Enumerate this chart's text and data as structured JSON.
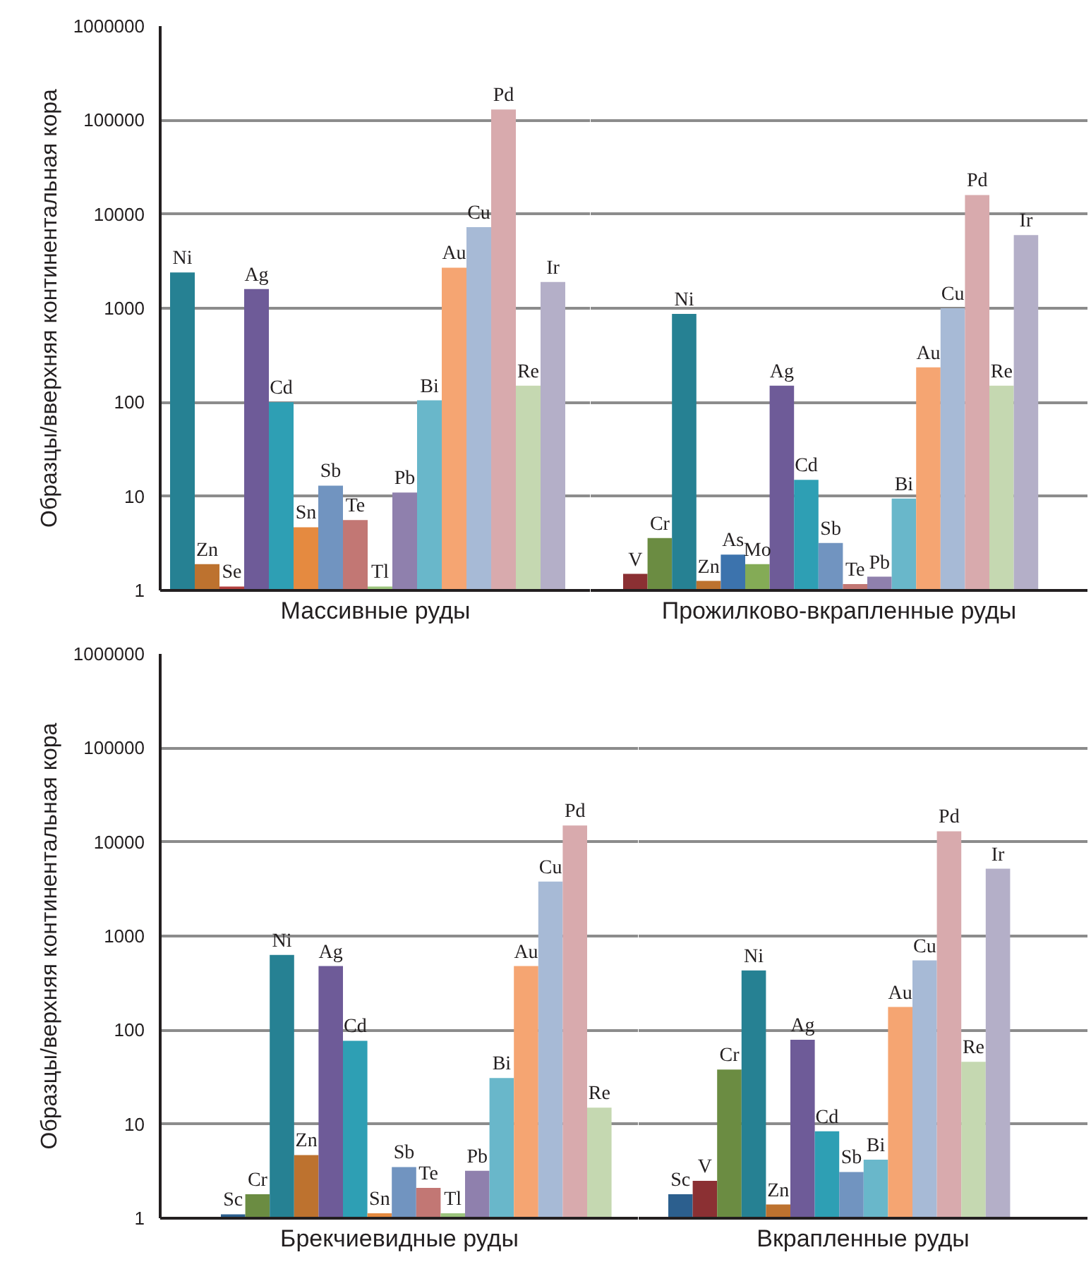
{
  "chart_data": [
    {
      "type": "bar",
      "xlabel": "Массивные руды",
      "ylabel": "Образцы/вверхняя континентальная кора",
      "log": "y",
      "grid": "y",
      "ylim": [
        1,
        1000000
      ],
      "yticks": [
        1,
        10,
        100,
        1000,
        10000,
        100000,
        1000000
      ],
      "categories": [
        "Ni",
        "Zn",
        "Se",
        "Ag",
        "Cd",
        "Sn",
        "Sb",
        "Te",
        "Tl",
        "Pb",
        "Bi",
        "Au",
        "Cu",
        "Pd",
        "Re",
        "Ir"
      ],
      "values": [
        2400,
        1.9,
        1.1,
        1600,
        100,
        4.7,
        13,
        5.6,
        1.1,
        11,
        105,
        2700,
        7300,
        130000,
        150,
        1900
      ],
      "colors": [
        "#268193",
        "#bd722f",
        "#b3403e",
        "#6e5b98",
        "#2e9fb4",
        "#e58a40",
        "#7194c0",
        "#c27774",
        "#9cc47d",
        "#8f80ad",
        "#69b7ca",
        "#f5a572",
        "#a7bad6",
        "#d8aaad",
        "#c5d8b1",
        "#b4afc8"
      ]
    },
    {
      "type": "bar",
      "xlabel": "Прожилково-вкрапленные руды",
      "log": "y",
      "grid": "y",
      "tick_labels": "x",
      "ylim": [
        1,
        1000000
      ],
      "yticks": [
        1,
        10,
        100,
        1000,
        10000,
        100000,
        1000000
      ],
      "categories": [
        "V",
        "Cr",
        "Ni",
        "Zn",
        "As",
        "Mo",
        "Ag",
        "Cd",
        "Sb",
        "Te",
        "Pb",
        "Bi",
        "Au",
        "Cu",
        "Pd",
        "Re",
        "Ir"
      ],
      "values": [
        1.5,
        3.6,
        870,
        1.26,
        2.4,
        1.9,
        150,
        15,
        3.2,
        1.17,
        1.4,
        9.5,
        235,
        1000,
        16000,
        150,
        6000
      ],
      "colors": [
        "#8b3033",
        "#6b8c42",
        "#268193",
        "#bd722f",
        "#3c73ad",
        "#84ab56",
        "#6e5b98",
        "#2e9fb4",
        "#7194c0",
        "#c27774",
        "#8f80ad",
        "#69b7ca",
        "#f5a572",
        "#a7bad6",
        "#d8aaad",
        "#c5d8b1",
        "#b4afc8"
      ]
    },
    {
      "type": "bar",
      "xlabel": "Брекчиевидные руды",
      "ylabel": "Образцы/верхняя континентальная кора",
      "log": "y",
      "grid": "y",
      "ylim": [
        1,
        1000000
      ],
      "yticks": [
        1,
        10,
        100,
        1000,
        10000,
        100000,
        1000000
      ],
      "categories": [
        "Sc",
        "Cr",
        "Ni",
        "Zn",
        "Ag",
        "Cd",
        "Sn",
        "Sb",
        "Te",
        "Tl",
        "Pb",
        "Bi",
        "Au",
        "Cu",
        "Pd",
        "Re"
      ],
      "values": [
        1.1,
        1.8,
        630,
        4.7,
        480,
        77,
        1.13,
        3.5,
        2.1,
        1.13,
        3.2,
        31,
        480,
        3800,
        15000,
        15
      ],
      "colors": [
        "#2c5f8e",
        "#6b8c42",
        "#268193",
        "#bd722f",
        "#6e5b98",
        "#2e9fb4",
        "#e58a40",
        "#7194c0",
        "#c27774",
        "#9cc47d",
        "#8f80ad",
        "#69b7ca",
        "#f5a572",
        "#a7bad6",
        "#d8aaad",
        "#c5d8b1"
      ]
    },
    {
      "type": "bar",
      "xlabel": "Вкрапленные руды",
      "log": "y",
      "grid": "y",
      "tick_labels": "x",
      "ylim": [
        1,
        1000000
      ],
      "yticks": [
        1,
        10,
        100,
        1000,
        10000,
        100000,
        1000000
      ],
      "categories": [
        "Sc",
        "V",
        "Cr",
        "Ni",
        "Zn",
        "Ag",
        "Cd",
        "Sb",
        "Bi",
        "Au",
        "Cu",
        "Pd",
        "Re",
        "Ir"
      ],
      "values": [
        1.8,
        2.5,
        38,
        430,
        1.4,
        79,
        8.4,
        3.1,
        4.2,
        176,
        550,
        13000,
        46,
        5200
      ],
      "colors": [
        "#2c5f8e",
        "#8b3033",
        "#6b8c42",
        "#268193",
        "#bd722f",
        "#6e5b98",
        "#2e9fb4",
        "#7194c0",
        "#69b7ca",
        "#f5a572",
        "#a7bad6",
        "#d8aaad",
        "#c5d8b1",
        "#b4afc8"
      ]
    }
  ]
}
